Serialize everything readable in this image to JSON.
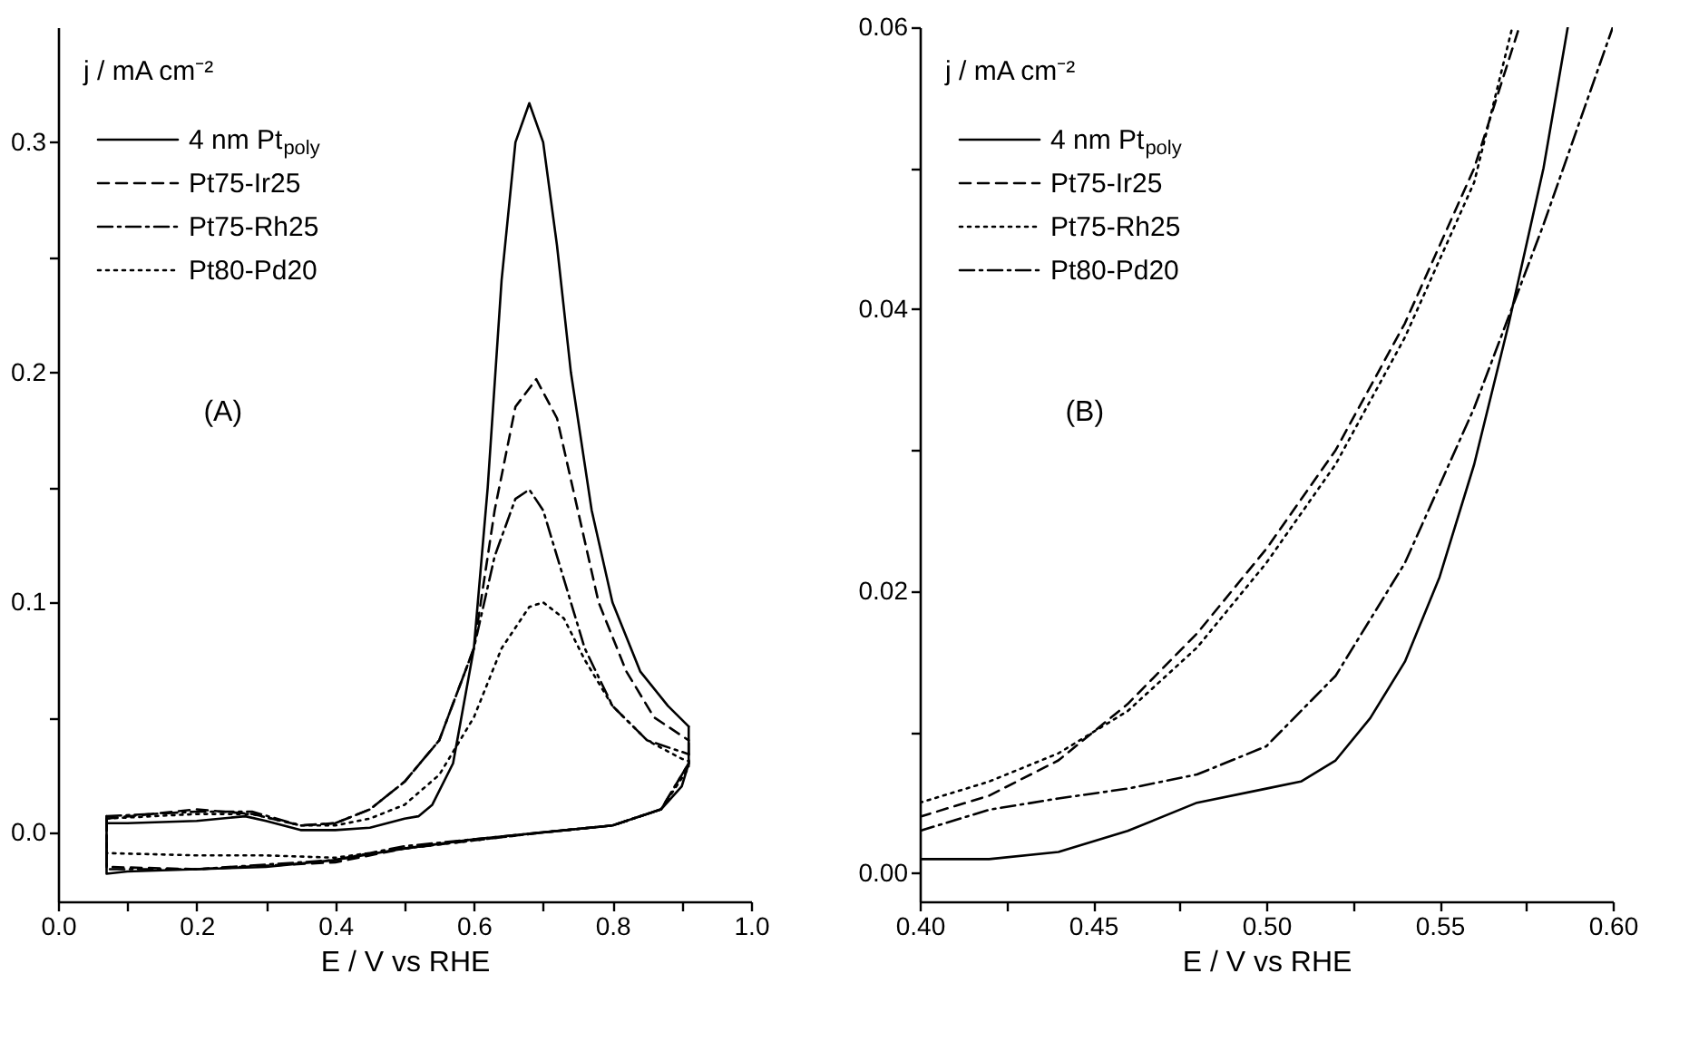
{
  "chart_data": [
    {
      "type": "line",
      "xlabel": "E / V vs RHE",
      "ylabel": "j / mA cm⁻²",
      "legend": "top left",
      "annotations": [
        "(A)"
      ],
      "xlim": [
        0,
        1.0
      ],
      "ylim": [
        -0.03,
        0.35
      ],
      "xticks": [
        {
          "value": 0,
          "label": "0.0"
        },
        {
          "value": 0.1,
          "label": null
        },
        0.2,
        {
          "value": 0.3,
          "label": null
        },
        0.4,
        {
          "value": 0.5,
          "label": null
        },
        0.6,
        {
          "value": 0.7,
          "label": null
        },
        0.8,
        {
          "value": 0.9,
          "label": null
        },
        {
          "value": 1.0,
          "label": "1.0"
        }
      ],
      "yticks": [
        {
          "value": 0,
          "label": "0.0"
        },
        {
          "value": 0.05,
          "label": null
        },
        0.1,
        {
          "value": 0.15,
          "label": null
        },
        0.2,
        {
          "value": 0.25,
          "label": null
        },
        0.3
      ],
      "series": [
        {
          "name": "4 nm Pt$_{poly}$",
          "color": "#000000",
          "line_style": "solid",
          "x": [
            0.07,
            0.1,
            0.2,
            0.27,
            0.3,
            0.35,
            0.4,
            0.45,
            0.5,
            0.52,
            0.54,
            0.57,
            0.6,
            0.62,
            0.64,
            0.66,
            0.68,
            0.7,
            0.72,
            0.74,
            0.77,
            0.8,
            0.84,
            0.88,
            0.91
          ],
          "values": [
            0.004,
            0.004,
            0.005,
            0.007,
            0.005,
            0.001,
            0.001,
            0.002,
            0.006,
            0.007,
            0.012,
            0.03,
            0.08,
            0.15,
            0.24,
            0.3,
            0.317,
            0.3,
            0.255,
            0.2,
            0.14,
            0.1,
            0.07,
            0.055,
            0.046
          ]
        },
        {
          "color": "#000000",
          "line_style": "solid",
          "x": [
            0.07,
            0.07,
            0.1,
            0.2,
            0.3,
            0.4,
            0.5,
            0.6,
            0.7,
            0.8,
            0.87,
            0.9,
            0.91,
            0.91
          ],
          "values": [
            0.004,
            -0.018,
            -0.017,
            -0.016,
            -0.015,
            -0.012,
            -0.007,
            -0.003,
            0.0,
            0.003,
            0.01,
            0.02,
            0.03,
            0.046
          ]
        },
        {
          "name": "Pt75-Ir25",
          "color": "#000000",
          "line_style": "dashed",
          "x": [
            0.07,
            0.2,
            0.28,
            0.35,
            0.4,
            0.45,
            0.5,
            0.55,
            0.6,
            0.63,
            0.66,
            0.69,
            0.72,
            0.75,
            0.78,
            0.82,
            0.86,
            0.9,
            0.91
          ],
          "values": [
            0.006,
            0.01,
            0.008,
            0.003,
            0.004,
            0.01,
            0.022,
            0.04,
            0.08,
            0.14,
            0.185,
            0.197,
            0.18,
            0.14,
            0.1,
            0.07,
            0.05,
            0.042,
            0.04
          ]
        },
        {
          "color": "#000000",
          "line_style": "dashed",
          "x": [
            0.07,
            0.07,
            0.2,
            0.4,
            0.5,
            0.7,
            0.8,
            0.87,
            0.91,
            0.91
          ],
          "values": [
            0.006,
            -0.015,
            -0.016,
            -0.013,
            -0.007,
            0.0,
            0.003,
            0.01,
            0.03,
            0.04
          ]
        },
        {
          "name": "Pt75-Rh25",
          "color": "#000000",
          "line_style": "dashdot",
          "x": [
            0.07,
            0.2,
            0.28,
            0.35,
            0.4,
            0.45,
            0.5,
            0.55,
            0.6,
            0.63,
            0.66,
            0.68,
            0.7,
            0.73,
            0.76,
            0.8,
            0.85,
            0.9,
            0.91
          ],
          "values": [
            0.007,
            0.009,
            0.009,
            0.003,
            0.004,
            0.01,
            0.022,
            0.04,
            0.08,
            0.12,
            0.145,
            0.149,
            0.14,
            0.11,
            0.08,
            0.055,
            0.04,
            0.035,
            0.034
          ]
        },
        {
          "color": "#000000",
          "line_style": "dashdot",
          "x": [
            0.07,
            0.07,
            0.2,
            0.4,
            0.5,
            0.7,
            0.8,
            0.87,
            0.91,
            0.91
          ],
          "values": [
            0.007,
            -0.016,
            -0.016,
            -0.012,
            -0.006,
            0.0,
            0.003,
            0.01,
            0.03,
            0.034
          ]
        },
        {
          "name": "Pt80-Pd20",
          "color": "#000000",
          "line_style": "dotted",
          "x": [
            0.07,
            0.2,
            0.28,
            0.35,
            0.4,
            0.45,
            0.5,
            0.55,
            0.6,
            0.64,
            0.68,
            0.7,
            0.73,
            0.76,
            0.8,
            0.85,
            0.9,
            0.91
          ],
          "values": [
            0.006,
            0.008,
            0.008,
            0.003,
            0.003,
            0.006,
            0.012,
            0.025,
            0.05,
            0.08,
            0.098,
            0.1,
            0.093,
            0.075,
            0.055,
            0.04,
            0.032,
            0.031
          ]
        },
        {
          "color": "#000000",
          "line_style": "dotted",
          "x": [
            0.07,
            0.07,
            0.2,
            0.3,
            0.4,
            0.5,
            0.7,
            0.8,
            0.87,
            0.91,
            0.91
          ],
          "values": [
            0.006,
            -0.009,
            -0.01,
            -0.01,
            -0.011,
            -0.007,
            0.0,
            0.003,
            0.01,
            0.028,
            0.031
          ]
        }
      ]
    },
    {
      "type": "line",
      "xlabel": "E / V vs RHE",
      "ylabel": "j / mA cm⁻²",
      "legend": "top left",
      "annotations": [
        "(B)"
      ],
      "xlim": [
        0.4,
        0.6
      ],
      "ylim": [
        -0.002,
        0.06
      ],
      "xticks": [
        {
          "value": 0.4,
          "label": "0.40"
        },
        {
          "value": 0.425,
          "label": null
        },
        0.45,
        {
          "value": 0.475,
          "label": null
        },
        {
          "value": 0.5,
          "label": "0.50"
        },
        {
          "value": 0.525,
          "label": null
        },
        0.55,
        {
          "value": 0.575,
          "label": null
        },
        {
          "value": 0.6,
          "label": "0.60"
        }
      ],
      "yticks": [
        {
          "value": 0,
          "label": "0.00"
        },
        {
          "value": 0.01,
          "label": null
        },
        0.02,
        {
          "value": 0.03,
          "label": null
        },
        0.04,
        {
          "value": 0.05,
          "label": null
        },
        0.06
      ],
      "series": [
        {
          "name": "4 nm Pt$_{poly}$",
          "color": "#000000",
          "line_style": "solid",
          "x": [
            0.4,
            0.42,
            0.44,
            0.46,
            0.48,
            0.5,
            0.51,
            0.52,
            0.53,
            0.54,
            0.55,
            0.56,
            0.57,
            0.58,
            0.587
          ],
          "values": [
            0.001,
            0.001,
            0.0015,
            0.003,
            0.005,
            0.006,
            0.0065,
            0.008,
            0.011,
            0.015,
            0.021,
            0.029,
            0.039,
            0.05,
            0.06
          ]
        },
        {
          "name": "Pt75-Ir25",
          "color": "#000000",
          "line_style": "dashed",
          "x": [
            0.4,
            0.42,
            0.44,
            0.46,
            0.48,
            0.5,
            0.52,
            0.54,
            0.56,
            0.573
          ],
          "values": [
            0.004,
            0.0055,
            0.008,
            0.012,
            0.017,
            0.023,
            0.03,
            0.039,
            0.05,
            0.06
          ]
        },
        {
          "name": "Pt75-Rh25",
          "color": "#000000",
          "line_style": "dotted",
          "x": [
            0.4,
            0.42,
            0.44,
            0.46,
            0.48,
            0.5,
            0.52,
            0.54,
            0.56,
            0.571
          ],
          "values": [
            0.005,
            0.0065,
            0.0085,
            0.0115,
            0.016,
            0.022,
            0.029,
            0.038,
            0.049,
            0.06
          ]
        },
        {
          "name": "Pt80-Pd20",
          "color": "#000000",
          "line_style": "dashdot",
          "x": [
            0.4,
            0.42,
            0.44,
            0.46,
            0.48,
            0.5,
            0.52,
            0.54,
            0.56,
            0.58,
            0.6
          ],
          "values": [
            0.003,
            0.0045,
            0.0053,
            0.006,
            0.007,
            0.009,
            0.014,
            0.022,
            0.033,
            0.046,
            0.06
          ]
        }
      ]
    }
  ]
}
